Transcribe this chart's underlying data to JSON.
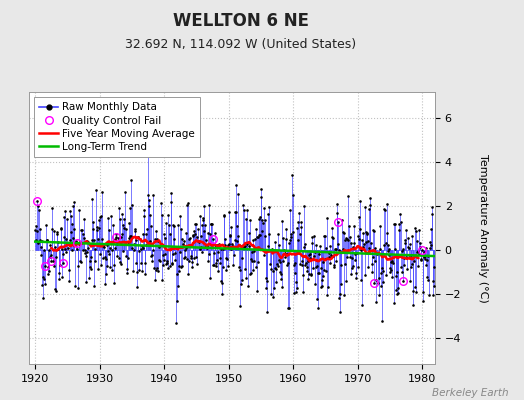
{
  "title": "WELLTON 6 NE",
  "subtitle": "32.692 N, 114.092 W (United States)",
  "ylabel": "Temperature Anomaly (°C)",
  "xlim": [
    1919,
    1982
  ],
  "ylim": [
    -5.2,
    7.2
  ],
  "yticks": [
    -4,
    -2,
    0,
    2,
    4,
    6
  ],
  "xticks": [
    1920,
    1930,
    1940,
    1950,
    1960,
    1970,
    1980
  ],
  "start_year": 1920,
  "n_months": 744,
  "line_color": "#4444ff",
  "marker_color": "#000000",
  "ma_color": "#ff0000",
  "trend_color": "#00bb00",
  "qc_color": "#ff00ff",
  "background_color": "#e8e8e8",
  "plot_bg_color": "#ffffff",
  "grid_color": "#bbbbbb",
  "title_fontsize": 12,
  "subtitle_fontsize": 9,
  "ylabel_fontsize": 8,
  "tick_fontsize": 8,
  "legend_fontsize": 7.5,
  "watermark": "Berkeley Earth",
  "seed": 42
}
